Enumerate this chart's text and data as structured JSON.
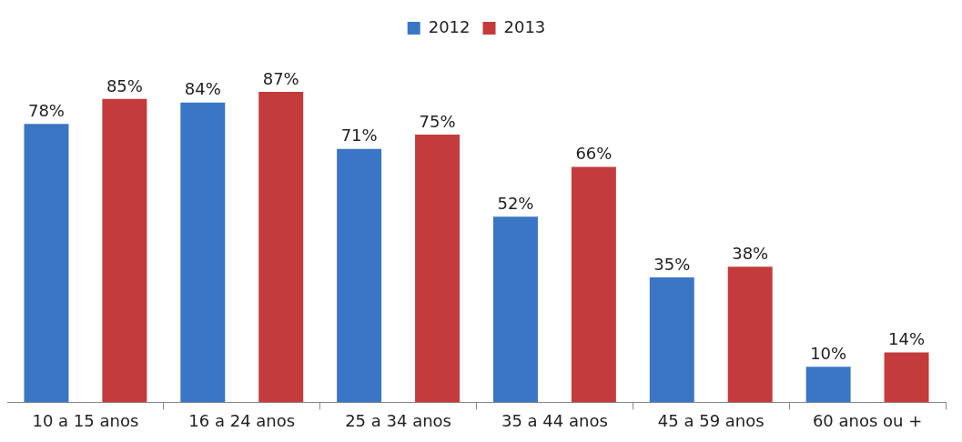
{
  "chart_data": {
    "type": "bar",
    "categories": [
      "10 a 15 anos",
      "16 a 24 anos",
      "25 a 34 anos",
      "35 a 44 anos",
      "45 a 59 anos",
      "60 anos ou +"
    ],
    "series": [
      {
        "name": "2012",
        "color": "#3b76c4",
        "values": [
          78,
          84,
          71,
          52,
          35,
          10
        ],
        "value_labels": [
          "78%",
          "84%",
          "71%",
          "52%",
          "35%",
          "10%"
        ]
      },
      {
        "name": "2013",
        "color": "#c43b3b",
        "values": [
          85,
          87,
          75,
          66,
          38,
          14
        ],
        "value_labels": [
          "85%",
          "87%",
          "75%",
          "66%",
          "38%",
          "14%"
        ]
      }
    ],
    "legend": "top",
    "grid": false
  }
}
